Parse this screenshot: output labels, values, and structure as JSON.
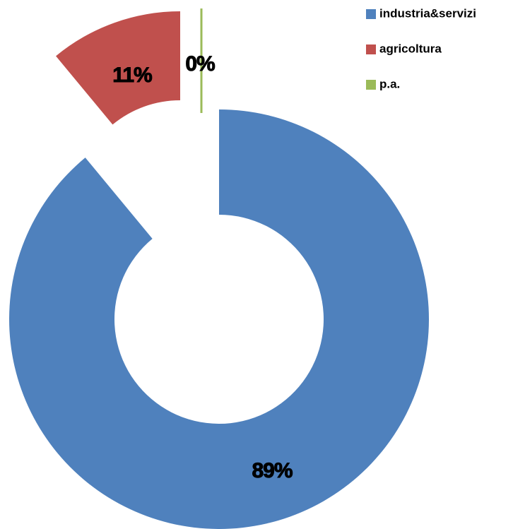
{
  "chart_data": {
    "type": "donut",
    "categories": [
      "industria&servizi",
      "agricoltura",
      "p.a."
    ],
    "values": [
      89,
      11,
      0
    ],
    "value_labels": [
      "89%",
      "11%",
      "0%"
    ],
    "colors": [
      "#4f81bd",
      "#c0504d",
      "#9bbb59"
    ],
    "legend": "top-right"
  }
}
